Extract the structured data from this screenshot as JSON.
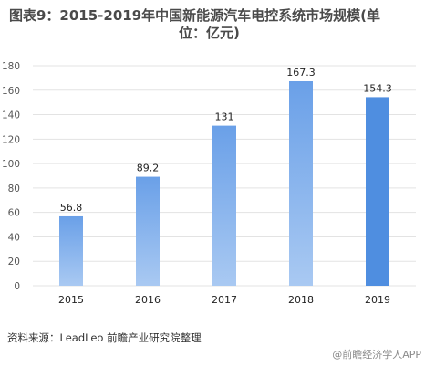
{
  "title_line1": "图表9：2015-2019年中国新能源汽车电控系统市场规模(单",
  "title_line2": "位：亿元)",
  "source": "资料来源：LeadLeo 前瞻产业研究院整理",
  "brand": "@前瞻经济学人APP",
  "colors": {
    "bar_top": "#6aa0e8",
    "bar_bottom": "#a9c9f2",
    "bar_2019": "#4f8ee0",
    "grid": "#e3e3e3",
    "axis_text": "#555555",
    "label_text": "#222222"
  },
  "chart_data": {
    "type": "bar",
    "title": "图表9：2015-2019年中国新能源汽车电控系统市场规模(单位：亿元)",
    "categories": [
      "2015",
      "2016",
      "2017",
      "2018",
      "2019"
    ],
    "values": [
      56.8,
      89.2,
      131,
      167.3,
      154.3
    ],
    "value_labels": [
      "56.8",
      "89.2",
      "131",
      "167.3",
      "154.3"
    ],
    "yticks": [
      "0",
      "20",
      "40",
      "60",
      "80",
      "100",
      "120",
      "140",
      "160",
      "180"
    ],
    "ylim": [
      0,
      180
    ],
    "grid": true,
    "xlabel": "",
    "ylabel": ""
  }
}
